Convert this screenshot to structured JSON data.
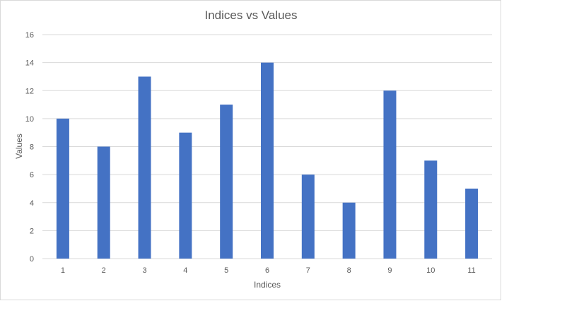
{
  "chart_data": {
    "type": "bar",
    "title": "Indices vs Values",
    "xlabel": "Indices",
    "ylabel": "Values",
    "categories": [
      "1",
      "2",
      "3",
      "4",
      "5",
      "6",
      "7",
      "8",
      "9",
      "10",
      "11"
    ],
    "values": [
      10,
      8,
      13,
      9,
      11,
      14,
      6,
      4,
      12,
      7,
      5
    ],
    "ylim": [
      0,
      16
    ],
    "yticks": [
      "0",
      "2",
      "4",
      "6",
      "8",
      "10",
      "12",
      "14",
      "16"
    ],
    "grid": true,
    "legend": "none",
    "colors": {
      "bar": "#4472c4",
      "grid": "#d9d9d9",
      "text": "#595959"
    }
  }
}
